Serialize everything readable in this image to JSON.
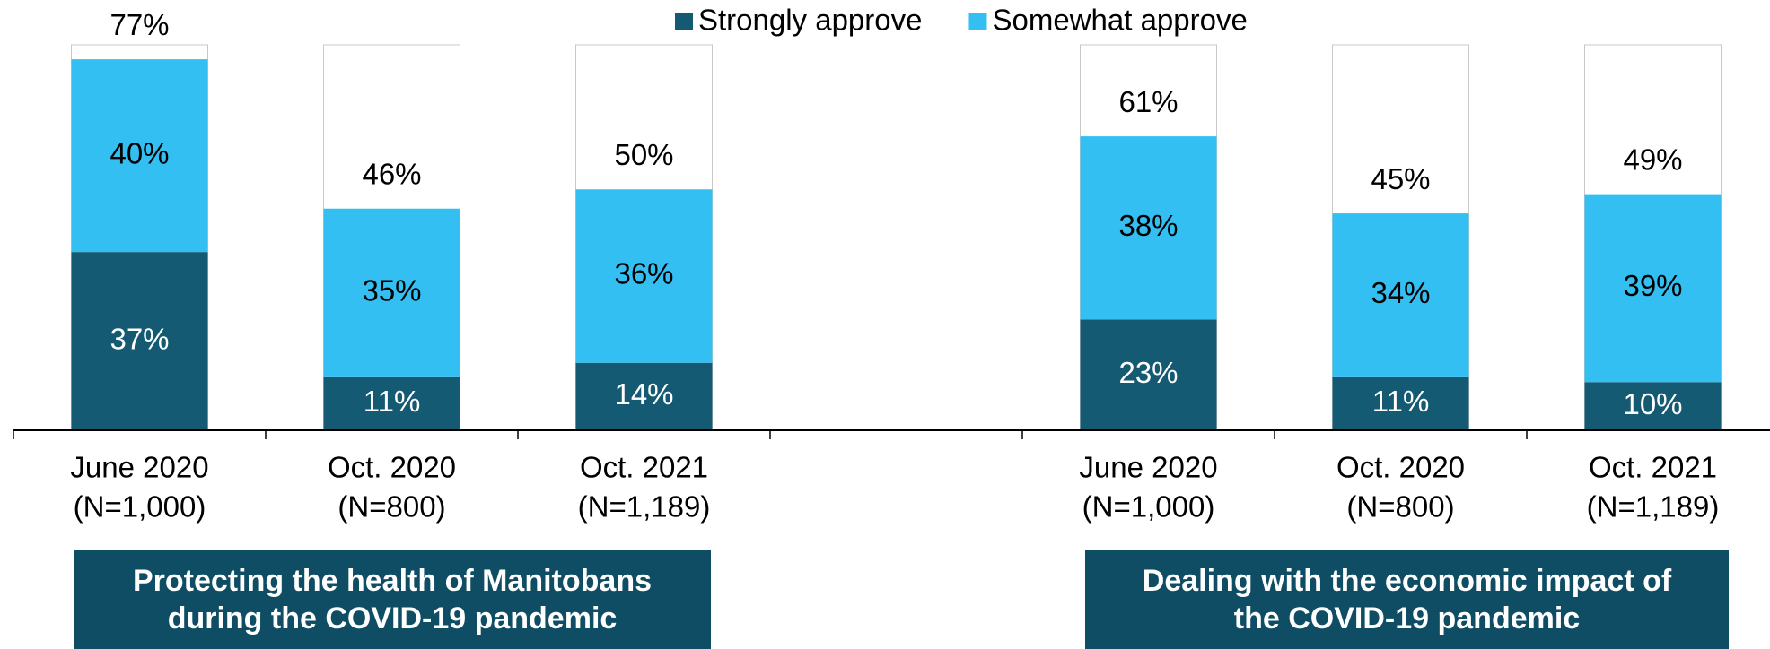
{
  "chart_data": {
    "type": "stacked_bar",
    "categories": [
      [
        "June 2020",
        "(N=1,000)"
      ],
      [
        "Oct. 2020",
        "(N=800)"
      ],
      [
        "Oct. 2021",
        "(N=1,189)"
      ],
      null,
      [
        "June 2020",
        "(N=1,000)"
      ],
      [
        "Oct. 2020",
        "(N=800)"
      ],
      [
        "Oct. 2021",
        "(N=1,189)"
      ]
    ],
    "series": [
      {
        "name": "Strongly approve",
        "color": "#145a73",
        "label_color": "#ffffff",
        "values": [
          37,
          11,
          14,
          null,
          23,
          11,
          10
        ],
        "value_labels": [
          "37%",
          "11%",
          "14%",
          null,
          "23%",
          "11%",
          "10%"
        ]
      },
      {
        "name": "Somewhat approve",
        "color": "#33bff2",
        "label_color": "#000000",
        "values": [
          40,
          35,
          36,
          null,
          38,
          34,
          39
        ],
        "value_labels": [
          "40%",
          "35%",
          "36%",
          null,
          "38%",
          "34%",
          "39%"
        ]
      }
    ],
    "totals": {
      "values": [
        77,
        46,
        50,
        null,
        61,
        45,
        49
      ],
      "value_labels": [
        "77%",
        "46%",
        "50%",
        null,
        "61%",
        "45%",
        "49%"
      ]
    },
    "ylim": [
      0,
      80
    ],
    "annotations": [
      {
        "lines": [
          "Protecting the health of Manitobans",
          "during the COVID-19 pandemic"
        ],
        "color": "#0e4d64"
      },
      {
        "lines": [
          "Dealing with the economic impact of",
          "the COVID-19 pandemic"
        ],
        "color": "#0e4d64"
      }
    ]
  }
}
